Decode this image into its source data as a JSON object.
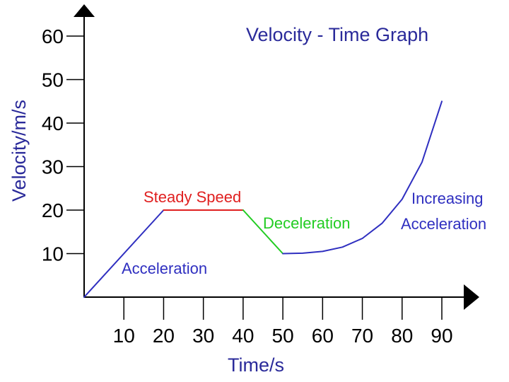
{
  "colors": {
    "axis": "#000000",
    "text_blue": "#2a2a9a",
    "acceleration": "#2f2fc0",
    "steady": "#e02020",
    "deceleration": "#22cc22",
    "increasing": "#2f2fc0"
  },
  "chart_data": {
    "type": "line",
    "title": "Velocity - Time Graph",
    "xlabel": "Time/s",
    "ylabel": "Velocity/m/s",
    "xlim": [
      0,
      90
    ],
    "ylim": [
      0,
      60
    ],
    "x_ticks": [
      10,
      20,
      30,
      40,
      50,
      60,
      70,
      80,
      90
    ],
    "y_ticks": [
      10,
      20,
      30,
      40,
      50,
      60
    ],
    "grid": false,
    "segments": [
      {
        "label": "Acceleration",
        "color_key": "acceleration",
        "points": [
          [
            0,
            0
          ],
          [
            20,
            20
          ]
        ]
      },
      {
        "label": "Steady Speed",
        "color_key": "steady",
        "points": [
          [
            20,
            20
          ],
          [
            40,
            20
          ]
        ]
      },
      {
        "label": "Deceleration",
        "color_key": "deceleration",
        "points": [
          [
            40,
            20
          ],
          [
            50,
            10
          ]
        ]
      },
      {
        "label": "Increasing Acceleration",
        "color_key": "increasing",
        "points": [
          [
            50,
            10
          ],
          [
            55,
            10.1
          ],
          [
            60,
            10.5
          ],
          [
            65,
            11.5
          ],
          [
            70,
            13.5
          ],
          [
            75,
            17
          ],
          [
            80,
            22.5
          ],
          [
            85,
            31
          ],
          [
            90,
            45
          ]
        ]
      }
    ],
    "annotations": [
      {
        "text": "Acceleration",
        "color_key": "acceleration"
      },
      {
        "text": "Steady Speed",
        "color_key": "steady"
      },
      {
        "text": "Deceleration",
        "color_key": "deceleration"
      },
      {
        "text": "Increasing",
        "color_key": "increasing"
      },
      {
        "text": "Acceleration",
        "color_key": "increasing"
      }
    ]
  }
}
